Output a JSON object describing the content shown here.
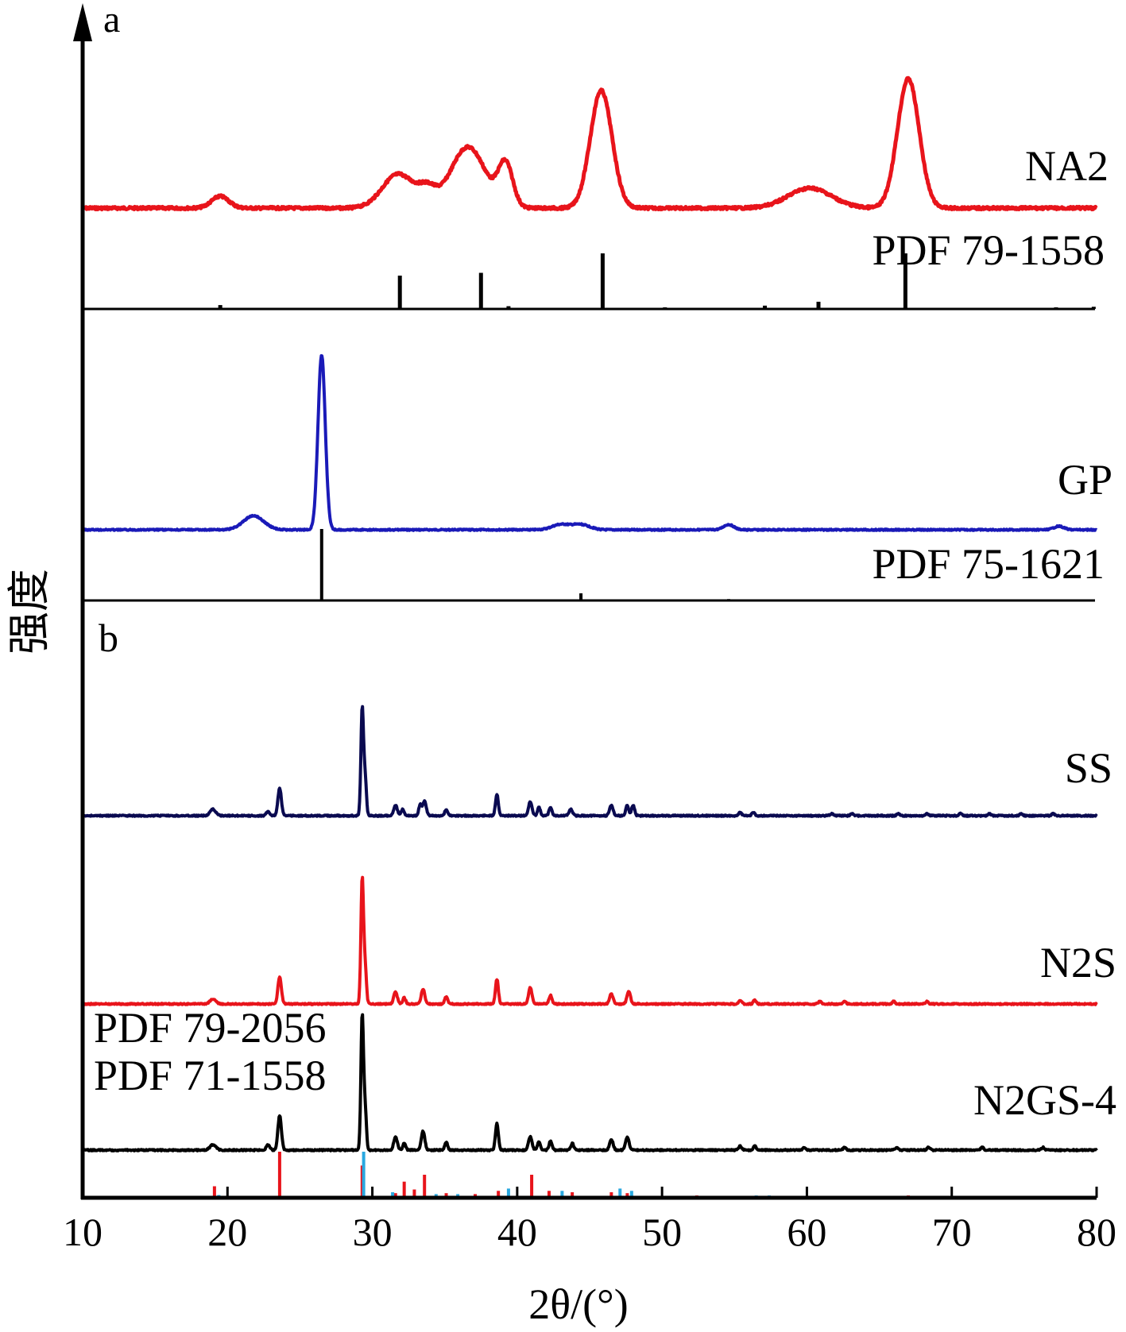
{
  "chart_data": {
    "type": "line",
    "xlabel": "2θ/(°)",
    "ylabel": "强度",
    "xlim": [
      10,
      80
    ],
    "x_ticks": [
      "10",
      "20",
      "30",
      "40",
      "50",
      "60",
      "70",
      "80"
    ],
    "panel_labels": [
      "a",
      "b"
    ],
    "colors": {
      "red": "#e8141b",
      "blue": "#1a1ab8",
      "navy": "#0a0a50",
      "black": "#000000",
      "cyan": "#29a8e0"
    },
    "series": [
      {
        "name": "NA2",
        "color": "#e8141b",
        "peaks": [
          [
            19.5,
            0.1,
            0.6
          ],
          [
            31.8,
            0.29,
            1.1
          ],
          [
            33.8,
            0.13,
            0.6
          ],
          [
            36.6,
            0.52,
            1.2
          ],
          [
            39.2,
            0.36,
            0.5
          ],
          [
            45.8,
            1.0,
            0.75
          ],
          [
            60.2,
            0.17,
            1.5
          ],
          [
            67.0,
            1.1,
            0.75
          ]
        ]
      },
      {
        "name": "PDF 79-1558",
        "color": "#000000",
        "kind": "stick",
        "sticks": [
          [
            19.5,
            0.07
          ],
          [
            31.9,
            0.6
          ],
          [
            37.5,
            0.65
          ],
          [
            39.4,
            0.05
          ],
          [
            45.9,
            1.0
          ],
          [
            50.2,
            0.03
          ],
          [
            57.1,
            0.06
          ],
          [
            60.8,
            0.13
          ],
          [
            66.8,
            1.0
          ],
          [
            77.2,
            0.03
          ],
          [
            79.8,
            0.04
          ]
        ]
      },
      {
        "name": "GP",
        "color": "#1a1ab8",
        "peaks": [
          [
            21.8,
            0.08,
            0.7
          ],
          [
            26.5,
            1.0,
            0.25
          ],
          [
            43.0,
            0.03,
            0.6
          ],
          [
            44.4,
            0.03,
            0.6
          ],
          [
            54.6,
            0.03,
            0.35
          ],
          [
            77.4,
            0.02,
            0.35
          ]
        ]
      },
      {
        "name": "PDF 75-1621",
        "color": "#000000",
        "kind": "stick",
        "sticks": [
          [
            26.5,
            1.0
          ],
          [
            44.4,
            0.1
          ],
          [
            54.6,
            0.02
          ]
        ]
      },
      {
        "name": "SS",
        "color": "#0a0a50",
        "peaks": [
          [
            19.0,
            0.06,
            0.2
          ],
          [
            22.8,
            0.04,
            0.12
          ],
          [
            23.6,
            0.26,
            0.12
          ],
          [
            29.3,
            1.0,
            0.09
          ],
          [
            29.5,
            0.35,
            0.09
          ],
          [
            31.6,
            0.1,
            0.12
          ],
          [
            32.1,
            0.06,
            0.1
          ],
          [
            33.3,
            0.1,
            0.1
          ],
          [
            33.6,
            0.14,
            0.12
          ],
          [
            35.1,
            0.06,
            0.1
          ],
          [
            38.6,
            0.2,
            0.1
          ],
          [
            40.9,
            0.13,
            0.12
          ],
          [
            41.5,
            0.08,
            0.1
          ],
          [
            42.3,
            0.08,
            0.1
          ],
          [
            43.7,
            0.06,
            0.12
          ],
          [
            46.5,
            0.1,
            0.12
          ],
          [
            47.6,
            0.1,
            0.1
          ],
          [
            48.0,
            0.1,
            0.1
          ],
          [
            55.4,
            0.03,
            0.1
          ],
          [
            56.3,
            0.03,
            0.1
          ],
          [
            61.7,
            0.02,
            0.1
          ],
          [
            63.1,
            0.02,
            0.1
          ],
          [
            66.3,
            0.02,
            0.1
          ],
          [
            68.3,
            0.02,
            0.1
          ],
          [
            70.6,
            0.02,
            0.1
          ],
          [
            72.6,
            0.02,
            0.1
          ],
          [
            74.8,
            0.02,
            0.1
          ],
          [
            77.0,
            0.02,
            0.1
          ]
        ]
      },
      {
        "name": "N2S",
        "color": "#e8141b",
        "peaks": [
          [
            19.0,
            0.04,
            0.2
          ],
          [
            23.6,
            0.22,
            0.12
          ],
          [
            29.3,
            1.0,
            0.09
          ],
          [
            29.5,
            0.3,
            0.09
          ],
          [
            31.6,
            0.1,
            0.12
          ],
          [
            32.2,
            0.05,
            0.1
          ],
          [
            33.5,
            0.12,
            0.12
          ],
          [
            35.1,
            0.06,
            0.1
          ],
          [
            38.6,
            0.2,
            0.1
          ],
          [
            40.9,
            0.13,
            0.12
          ],
          [
            42.3,
            0.07,
            0.1
          ],
          [
            46.5,
            0.08,
            0.12
          ],
          [
            47.7,
            0.1,
            0.12
          ],
          [
            55.4,
            0.03,
            0.1
          ],
          [
            56.4,
            0.03,
            0.1
          ],
          [
            60.9,
            0.02,
            0.1
          ],
          [
            62.6,
            0.02,
            0.1
          ],
          [
            66.0,
            0.02,
            0.1
          ],
          [
            68.3,
            0.02,
            0.1
          ]
        ]
      },
      {
        "name": "N2GS-4",
        "color": "#000000",
        "peaks": [
          [
            19.0,
            0.04,
            0.2
          ],
          [
            22.8,
            0.04,
            0.12
          ],
          [
            23.6,
            0.26,
            0.12
          ],
          [
            29.3,
            1.0,
            0.09
          ],
          [
            29.5,
            0.3,
            0.09
          ],
          [
            31.6,
            0.1,
            0.12
          ],
          [
            32.2,
            0.05,
            0.1
          ],
          [
            33.5,
            0.14,
            0.12
          ],
          [
            35.1,
            0.06,
            0.1
          ],
          [
            38.6,
            0.2,
            0.1
          ],
          [
            40.9,
            0.1,
            0.12
          ],
          [
            41.5,
            0.06,
            0.1
          ],
          [
            42.3,
            0.07,
            0.1
          ],
          [
            43.8,
            0.05,
            0.1
          ],
          [
            46.5,
            0.08,
            0.12
          ],
          [
            47.6,
            0.1,
            0.12
          ],
          [
            55.4,
            0.03,
            0.1
          ],
          [
            56.4,
            0.03,
            0.1
          ],
          [
            59.8,
            0.02,
            0.1
          ],
          [
            62.6,
            0.02,
            0.1
          ],
          [
            66.2,
            0.02,
            0.1
          ],
          [
            68.4,
            0.02,
            0.1
          ],
          [
            72.1,
            0.02,
            0.1
          ],
          [
            76.3,
            0.02,
            0.1
          ]
        ]
      },
      {
        "name": "PDF 79-2056",
        "color": "#e8141b",
        "kind": "stick",
        "sticks": [
          [
            19.1,
            0.25
          ],
          [
            23.6,
            1.0
          ],
          [
            29.3,
            0.7
          ],
          [
            31.6,
            0.1
          ],
          [
            32.2,
            0.35
          ],
          [
            32.9,
            0.18
          ],
          [
            33.6,
            0.5
          ],
          [
            35.1,
            0.1
          ],
          [
            37.1,
            0.08
          ],
          [
            38.7,
            0.15
          ],
          [
            41.0,
            0.5
          ],
          [
            42.2,
            0.15
          ],
          [
            43.8,
            0.12
          ],
          [
            46.5,
            0.12
          ],
          [
            47.6,
            0.1
          ],
          [
            52.4,
            0.05
          ],
          [
            58.5,
            0.04
          ],
          [
            67.0,
            0.05
          ],
          [
            69.2,
            0.04
          ]
        ]
      },
      {
        "name": "PDF 71-1558",
        "color": "#29a8e0",
        "kind": "stick",
        "sticks": [
          [
            19.4,
            0.06
          ],
          [
            29.4,
            1.0
          ],
          [
            31.4,
            0.12
          ],
          [
            34.4,
            0.08
          ],
          [
            35.9,
            0.08
          ],
          [
            39.4,
            0.2
          ],
          [
            43.1,
            0.15
          ],
          [
            47.1,
            0.2
          ],
          [
            47.9,
            0.15
          ],
          [
            56.5,
            0.05
          ],
          [
            57.4,
            0.05
          ],
          [
            60.7,
            0.04
          ],
          [
            63.1,
            0.04
          ],
          [
            64.7,
            0.04
          ],
          [
            65.6,
            0.04
          ]
        ]
      }
    ]
  }
}
